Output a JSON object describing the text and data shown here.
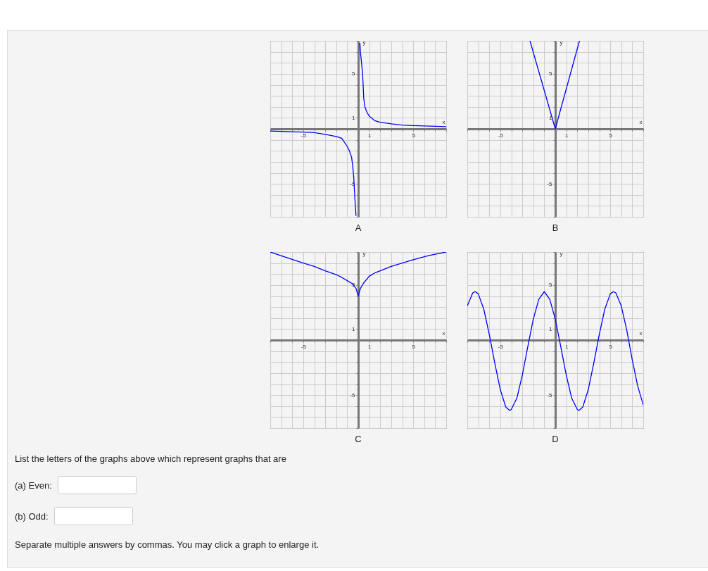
{
  "chart_data": [
    {
      "type": "line",
      "title": "A",
      "xlabel": "x",
      "ylabel": "y",
      "xlim": [
        -8,
        8
      ],
      "ylim": [
        -8,
        8
      ],
      "xticks": [
        {
          "value": -8,
          "label": null
        },
        {
          "value": -7,
          "label": null
        },
        {
          "value": -6,
          "label": null
        },
        -5,
        {
          "value": -4,
          "label": null
        },
        {
          "value": -3,
          "label": null
        },
        {
          "value": -2,
          "label": null
        },
        {
          "value": -1,
          "label": null
        },
        {
          "value": 0,
          "label": null
        },
        1,
        {
          "value": 2,
          "label": null
        },
        {
          "value": 3,
          "label": null
        },
        {
          "value": 4,
          "label": null
        },
        5,
        {
          "value": 6,
          "label": null
        },
        {
          "value": 7,
          "label": null
        },
        {
          "value": 8,
          "label": null
        }
      ],
      "yticks": [
        {
          "value": -8,
          "label": null
        },
        {
          "value": -7,
          "label": null
        },
        {
          "value": -6,
          "label": null
        },
        -5,
        {
          "value": -4,
          "label": null
        },
        {
          "value": -3,
          "label": null
        },
        {
          "value": -2,
          "label": null
        },
        {
          "value": -1,
          "label": null
        },
        {
          "value": 0,
          "label": null
        },
        1,
        {
          "value": 2,
          "label": null
        },
        {
          "value": 3,
          "label": null
        },
        {
          "value": 4,
          "label": null
        },
        5,
        {
          "value": 6,
          "label": null
        },
        {
          "value": 7,
          "label": null
        },
        {
          "value": 8,
          "label": null
        }
      ],
      "grid": true,
      "series": [
        {
          "color": "#0000ff",
          "x": [
            0.15,
            0.2,
            0.3,
            0.4,
            0.5,
            0.6,
            0.8,
            1,
            1.5,
            2,
            3,
            4,
            5,
            6.5,
            8
          ],
          "values": [
            7.8,
            7,
            6,
            5,
            2.8,
            2,
            1.5,
            1.15,
            0.75,
            0.6,
            0.45,
            0.35,
            0.3,
            0.25,
            0.2
          ]
        },
        {
          "color": "#0000ff",
          "x": [
            -8,
            -6.5,
            -5,
            -4,
            -3,
            -2,
            -1.5,
            -1,
            -0.8,
            -0.6,
            -0.5,
            -0.4,
            -0.3,
            -0.2
          ],
          "values": [
            -0.2,
            -0.25,
            -0.3,
            -0.35,
            -0.5,
            -0.7,
            -0.85,
            -1.6,
            -2,
            -2.6,
            -3.4,
            -4.5,
            -6.4,
            -7.9
          ]
        }
      ]
    },
    {
      "type": "line",
      "title": "B",
      "xlabel": "x",
      "ylabel": "y",
      "xlim": [
        -8,
        8
      ],
      "ylim": [
        -8,
        8
      ],
      "xticks": [
        {
          "value": -8,
          "label": null
        },
        {
          "value": -7,
          "label": null
        },
        {
          "value": -6,
          "label": null
        },
        -5,
        {
          "value": -4,
          "label": null
        },
        {
          "value": -3,
          "label": null
        },
        {
          "value": -2,
          "label": null
        },
        {
          "value": -1,
          "label": null
        },
        {
          "value": 0,
          "label": null
        },
        1,
        {
          "value": 2,
          "label": null
        },
        {
          "value": 3,
          "label": null
        },
        {
          "value": 4,
          "label": null
        },
        5,
        {
          "value": 6,
          "label": null
        },
        {
          "value": 7,
          "label": null
        },
        {
          "value": 8,
          "label": null
        }
      ],
      "yticks": [
        {
          "value": -8,
          "label": null
        },
        {
          "value": -7,
          "label": null
        },
        {
          "value": -6,
          "label": null
        },
        -5,
        {
          "value": -4,
          "label": null
        },
        {
          "value": -3,
          "label": null
        },
        {
          "value": -2,
          "label": null
        },
        {
          "value": -1,
          "label": null
        },
        {
          "value": 0,
          "label": null
        },
        1,
        {
          "value": 2,
          "label": null
        },
        {
          "value": 3,
          "label": null
        },
        {
          "value": 4,
          "label": null
        },
        5,
        {
          "value": 6,
          "label": null
        },
        {
          "value": 7,
          "label": null
        },
        {
          "value": 8,
          "label": null
        }
      ],
      "grid": true,
      "series": [
        {
          "color": "#0000ff",
          "x": [
            -2.3,
            0,
            2.2
          ],
          "values": [
            8,
            0,
            8
          ]
        }
      ]
    },
    {
      "type": "line",
      "title": "C",
      "xlabel": "x",
      "ylabel": "y",
      "xlim": [
        -8,
        8
      ],
      "ylim": [
        -8,
        8
      ],
      "xticks": [
        {
          "value": -8,
          "label": null
        },
        {
          "value": -7,
          "label": null
        },
        {
          "value": -6,
          "label": null
        },
        -5,
        {
          "value": -4,
          "label": null
        },
        {
          "value": -3,
          "label": null
        },
        {
          "value": -2,
          "label": null
        },
        {
          "value": -1,
          "label": null
        },
        {
          "value": 0,
          "label": null
        },
        1,
        {
          "value": 2,
          "label": null
        },
        {
          "value": 3,
          "label": null
        },
        {
          "value": 4,
          "label": null
        },
        5,
        {
          "value": 6,
          "label": null
        },
        {
          "value": 7,
          "label": null
        },
        {
          "value": 8,
          "label": null
        }
      ],
      "yticks": [
        {
          "value": -8,
          "label": null
        },
        {
          "value": -7,
          "label": null
        },
        {
          "value": -6,
          "label": null
        },
        -5,
        {
          "value": -4,
          "label": null
        },
        {
          "value": -3,
          "label": null
        },
        {
          "value": -2,
          "label": null
        },
        {
          "value": -1,
          "label": null
        },
        {
          "value": 0,
          "label": null
        },
        1,
        {
          "value": 2,
          "label": null
        },
        {
          "value": 3,
          "label": null
        },
        {
          "value": 4,
          "label": null
        },
        5,
        {
          "value": 6,
          "label": null
        },
        {
          "value": 7,
          "label": null
        },
        {
          "value": 8,
          "label": null
        }
      ],
      "grid": true,
      "series": [
        {
          "color": "#0000ff",
          "x": [
            -8,
            -6.5,
            -5,
            -4,
            -3,
            -2,
            -1.5,
            -1,
            -0.5,
            -0.2,
            0,
            0.2,
            0.5,
            1,
            1.5,
            2,
            3,
            4,
            5,
            6.5,
            8
          ],
          "values": [
            8,
            7.5,
            7,
            6.7,
            6.3,
            5.95,
            5.7,
            5.4,
            5.1,
            4.7,
            4,
            4.7,
            5.2,
            5.8,
            6.1,
            6.3,
            6.7,
            7,
            7.3,
            7.7,
            8
          ]
        }
      ]
    },
    {
      "type": "line",
      "title": "D",
      "xlabel": "x",
      "ylabel": "y",
      "xlim": [
        -8,
        8
      ],
      "ylim": [
        -8,
        8
      ],
      "xticks": [
        {
          "value": -8,
          "label": null
        },
        {
          "value": -7,
          "label": null
        },
        {
          "value": -6,
          "label": null
        },
        -5,
        {
          "value": -4,
          "label": null
        },
        {
          "value": -3,
          "label": null
        },
        {
          "value": -2,
          "label": null
        },
        {
          "value": -1,
          "label": null
        },
        {
          "value": 0,
          "label": null
        },
        1,
        {
          "value": 2,
          "label": null
        },
        {
          "value": 3,
          "label": null
        },
        {
          "value": 4,
          "label": null
        },
        5,
        {
          "value": 6,
          "label": null
        },
        {
          "value": 7,
          "label": null
        },
        {
          "value": 8,
          "label": null
        }
      ],
      "yticks": [
        {
          "value": -8,
          "label": null
        },
        {
          "value": -7,
          "label": null
        },
        {
          "value": -6,
          "label": null
        },
        -5,
        {
          "value": -4,
          "label": null
        },
        {
          "value": -3,
          "label": null
        },
        {
          "value": -2,
          "label": null
        },
        {
          "value": -1,
          "label": null
        },
        {
          "value": 0,
          "label": null
        },
        1,
        {
          "value": 2,
          "label": null
        },
        {
          "value": 3,
          "label": null
        },
        {
          "value": 4,
          "label": null
        },
        5,
        {
          "value": 6,
          "label": null
        },
        {
          "value": 7,
          "label": null
        },
        {
          "value": 8,
          "label": null
        }
      ],
      "grid": true,
      "series": [
        {
          "color": "#0000ff",
          "x": [
            -8,
            -7.5,
            -7.28,
            -7,
            -6.5,
            -6,
            -5.5,
            -5,
            -4.5,
            -4.14,
            -4,
            -3.5,
            -3,
            -2.5,
            -2,
            -1.5,
            -1,
            -0.5,
            0,
            0.5,
            1,
            1.5,
            2,
            2.14,
            2.5,
            3,
            3.5,
            4,
            4.5,
            5,
            5.28,
            5.5,
            6,
            6.5,
            7,
            7.5,
            8
          ],
          "values": [
            3.1,
            4.3,
            4.4,
            4.2,
            2.8,
            0.5,
            -2.1,
            -4.5,
            -6.1,
            -6.4,
            -6.3,
            -5.3,
            -3.2,
            -0.6,
            1.9,
            3.7,
            4.4,
            3.7,
            1.9,
            -0.6,
            -3.2,
            -5.3,
            -6.3,
            -6.4,
            -6.1,
            -4.5,
            -2.1,
            0.5,
            2.8,
            4.2,
            4.4,
            4.3,
            3.1,
            0.9,
            -1.8,
            -4.2,
            -5.9
          ]
        }
      ]
    },
    {
      "type": "other",
      "annotations": [
        "List the letters of the graphs above which represent graphs that are",
        "(a) Even:",
        "(b) Odd:",
        "Separate multiple answers by commas. You may click a graph to enlarge it."
      ]
    }
  ]
}
